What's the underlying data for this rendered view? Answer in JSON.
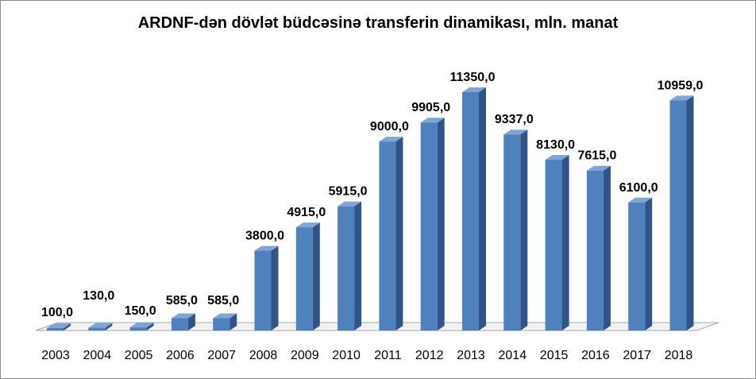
{
  "chart_data": {
    "type": "bar",
    "title": "ARDNF-dən dövlət büdcəsinə transferin dinamikası, mln. manat",
    "categories": [
      "2003",
      "2004",
      "2005",
      "2006",
      "2007",
      "2008",
      "2009",
      "2010",
      "2011",
      "2012",
      "2013",
      "2014",
      "2015",
      "2016",
      "2017",
      "2018"
    ],
    "values": [
      100.0,
      130.0,
      150.0,
      585.0,
      585.0,
      3800.0,
      4915.0,
      5915.0,
      9000.0,
      9905.0,
      11350.0,
      9337.0,
      8130.0,
      7615.0,
      6100.0,
      10959.0
    ],
    "data_labels": [
      "100,0",
      "130,0",
      "150,0",
      "585,0",
      "585,0",
      "3800,0",
      "4915,0",
      "5915,0",
      "9000,0",
      "9905,0",
      "11350,0",
      "9337,0",
      "8130,0",
      "7615,0",
      "6100,0",
      "10959,0"
    ],
    "xlabel": "",
    "ylabel": "",
    "ylim": [
      0,
      12000
    ],
    "grid": false,
    "legend": "none",
    "colors": {
      "bar_front": "#4f81bd",
      "bar_side": "#2f5487",
      "bar_top": "#7ea5d8",
      "floor": "#f2f2f2"
    }
  }
}
